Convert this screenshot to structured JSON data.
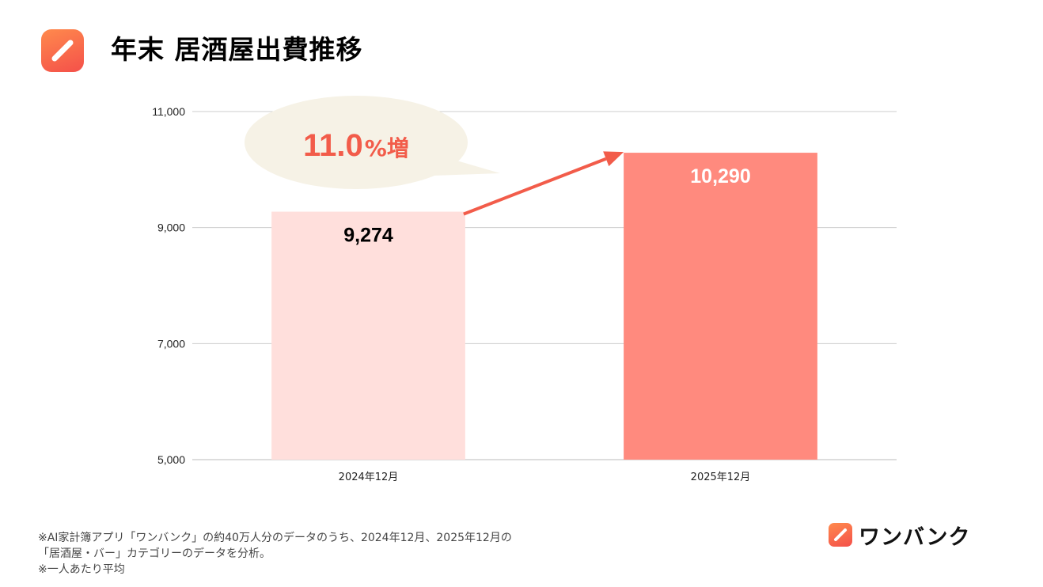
{
  "header": {
    "title": "年末 居酒屋出費推移",
    "logo_icon": "pencil-icon"
  },
  "chart_data": {
    "type": "bar",
    "title": "年末 居酒屋出費推移",
    "categories": [
      "2024年12月",
      "2025年12月"
    ],
    "values": [
      9274,
      10290
    ],
    "value_labels": [
      "9,274",
      "10,290"
    ],
    "ylim": [
      5000,
      11000
    ],
    "yticks": [
      5000,
      7000,
      9000,
      11000
    ],
    "ytick_labels": [
      "5,000",
      "7,000",
      "9,000",
      "11,000"
    ],
    "xlabel": "",
    "ylabel": "",
    "grid": true,
    "bar_colors": [
      "#ffdfdc",
      "#ff8a7e"
    ],
    "label_colors": [
      "#000000",
      "#ffffff"
    ],
    "callout": {
      "number": "11.0",
      "unit": "%増",
      "bubble_color": "#f6f2e6"
    },
    "arrow_color": "#f25c4a"
  },
  "footnotes": {
    "line1": "※AI家計簿アプリ「ワンバンク」の約40万人分のデータのうち、2024年12月、2025年12月の",
    "line2": "「居酒屋・バー」カテゴリーのデータを分析。",
    "line3": "※一人あたり平均"
  },
  "brand": {
    "name": "ワンバンク",
    "icon": "pencil-icon"
  }
}
